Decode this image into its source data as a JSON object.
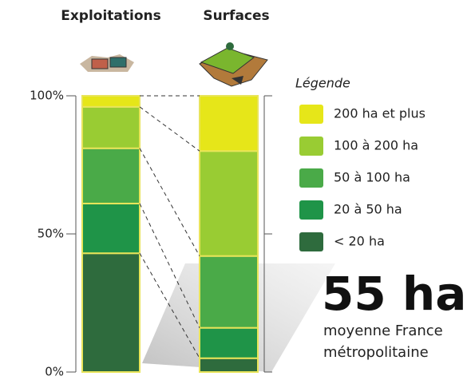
{
  "chart_data": {
    "type": "stacked-bar",
    "categories": [
      "Exploitations",
      "Surfaces"
    ],
    "series": [
      {
        "name": "< 20 ha",
        "color": "#2e6b3d",
        "values": [
          43,
          5
        ]
      },
      {
        "name": "20 à 50 ha",
        "color": "#1f9448",
        "values": [
          18,
          11
        ]
      },
      {
        "name": "50 à 100 ha",
        "color": "#4aaa48",
        "values": [
          20,
          26
        ]
      },
      {
        "name": "100 à 200 ha",
        "color": "#99cc33",
        "values": [
          15,
          38
        ]
      },
      {
        "name": "200 ha et plus",
        "color": "#e6e619",
        "values": [
          4,
          20
        ]
      }
    ],
    "ylim": [
      0,
      100
    ],
    "yticks": [
      {
        "value": 0,
        "label": "0%"
      },
      {
        "value": 50,
        "label": "50%"
      },
      {
        "value": 100,
        "label": "100%"
      }
    ],
    "legend_title": "Légende",
    "annotation": {
      "headline": "55 ha",
      "lines": [
        "moyenne France",
        "métropolitaine"
      ]
    }
  }
}
